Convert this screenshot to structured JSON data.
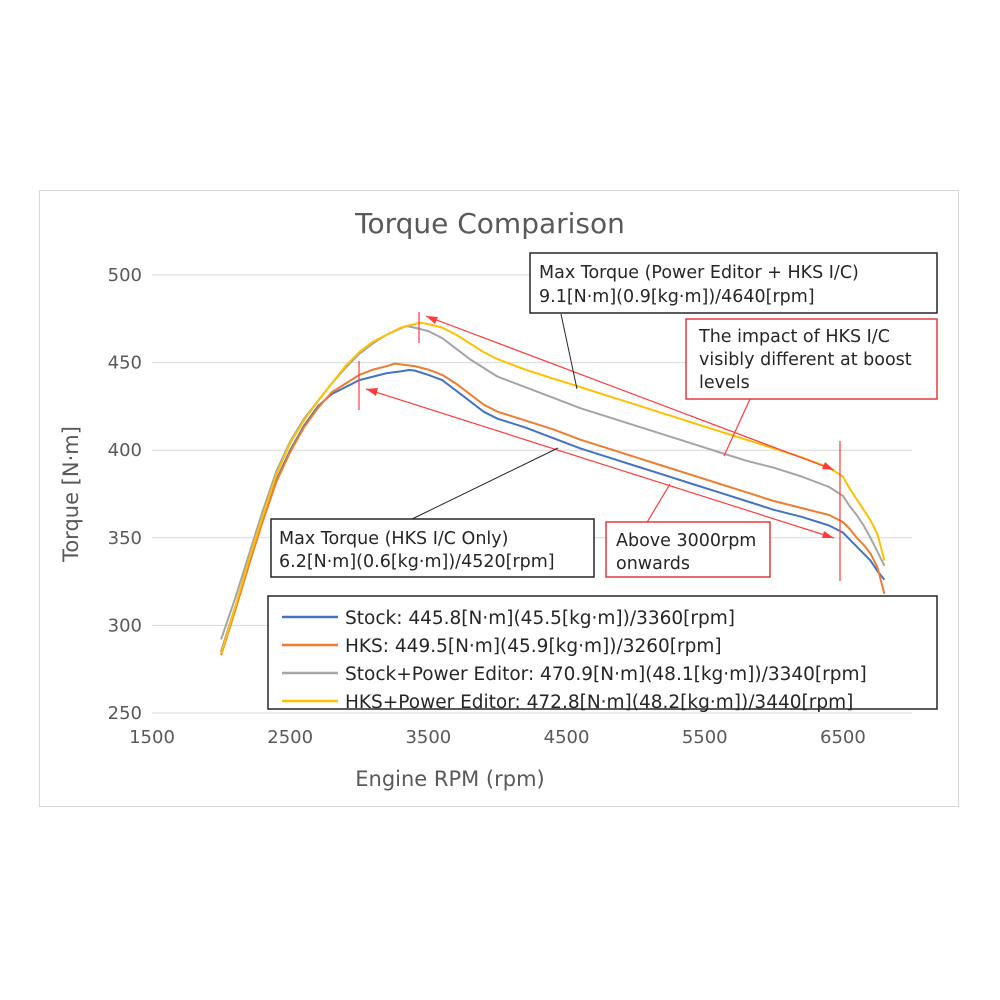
{
  "chart_data": {
    "type": "line",
    "title": "Torque Comparison",
    "xlabel": "Engine RPM (rpm)",
    "ylabel": "Torque [N·m]",
    "xlim": [
      1500,
      7000
    ],
    "ylim": [
      250,
      500
    ],
    "xticks": [
      "1500",
      "2500",
      "3500",
      "4500",
      "5500",
      "6500"
    ],
    "yticks": [
      "250",
      "300",
      "350",
      "400",
      "450",
      "500"
    ],
    "grid": "horizontal",
    "legend_position": "bottom-right",
    "series": [
      {
        "name": "Stock: 445.8[N·m](45.5[kg·m])/3360[rpm]",
        "color": "#4472c4",
        "x": [
          2000,
          2100,
          2200,
          2300,
          2400,
          2500,
          2600,
          2700,
          2800,
          2900,
          3000,
          3100,
          3200,
          3300,
          3360,
          3400,
          3500,
          3600,
          3700,
          3800,
          3900,
          4000,
          4200,
          4400,
          4600,
          4800,
          5000,
          5200,
          5400,
          5600,
          5800,
          6000,
          6200,
          6400,
          6500,
          6550,
          6600,
          6650,
          6700,
          6750,
          6800
        ],
        "y": [
          285,
          310,
          335,
          360,
          383,
          400,
          414,
          425,
          432,
          436,
          440,
          442,
          444,
          445,
          445.8,
          445.5,
          443,
          440,
          434,
          428,
          422,
          418,
          413,
          407,
          401,
          396,
          391,
          386,
          381,
          376,
          371,
          366,
          362,
          357,
          353,
          349,
          345,
          341,
          337,
          331,
          326
        ]
      },
      {
        "name": "HKS: 449.5[N·m](45.9[kg·m])/3260[rpm]",
        "color": "#ed7d31",
        "x": [
          2000,
          2100,
          2200,
          2300,
          2400,
          2500,
          2600,
          2700,
          2800,
          2900,
          3000,
          3100,
          3200,
          3260,
          3300,
          3400,
          3500,
          3600,
          3700,
          3800,
          3900,
          4000,
          4200,
          4400,
          4600,
          4800,
          5000,
          5200,
          5400,
          5600,
          5800,
          6000,
          6200,
          6400,
          6500,
          6550,
          6600,
          6650,
          6700,
          6750,
          6800
        ],
        "y": [
          283,
          308,
          334,
          359,
          382,
          399,
          413,
          424,
          433,
          438,
          443,
          446,
          448,
          449.5,
          449,
          448,
          446,
          443,
          438,
          432,
          426,
          422,
          417,
          412,
          406,
          401,
          396,
          391,
          386,
          381,
          376,
          371,
          367,
          363,
          359,
          355,
          350,
          346,
          341,
          333,
          318
        ]
      },
      {
        "name": "Stock+Power Editor: 470.9[N·m](48.1[kg·m])/3340[rpm]",
        "color": "#a5a5a5",
        "x": [
          2000,
          2100,
          2200,
          2300,
          2400,
          2500,
          2600,
          2700,
          2800,
          2900,
          3000,
          3100,
          3200,
          3340,
          3400,
          3500,
          3600,
          3700,
          3800,
          3900,
          4000,
          4200,
          4400,
          4600,
          4800,
          5000,
          5200,
          5400,
          5600,
          5800,
          6000,
          6200,
          6400,
          6500,
          6550,
          6600,
          6650,
          6700,
          6750,
          6800
        ],
        "y": [
          292,
          315,
          340,
          365,
          388,
          405,
          418,
          428,
          438,
          447,
          455,
          461,
          466,
          470.9,
          470,
          468,
          464,
          458,
          452,
          447,
          442,
          436,
          430,
          424,
          419,
          414,
          409,
          404,
          399,
          394,
          390,
          385,
          379,
          374,
          368,
          363,
          357,
          350,
          342,
          334
        ]
      },
      {
        "name": "HKS+Power Editor: 472.8[N·m](48.2[kg·m])/3440[rpm]",
        "color": "#ffc000",
        "x": [
          2000,
          2100,
          2200,
          2300,
          2400,
          2500,
          2600,
          2700,
          2800,
          2900,
          3000,
          3100,
          3200,
          3300,
          3440,
          3500,
          3600,
          3700,
          3800,
          3900,
          4000,
          4200,
          4400,
          4600,
          4800,
          5000,
          5200,
          5400,
          5600,
          5800,
          6000,
          6200,
          6400,
          6500,
          6550,
          6600,
          6650,
          6700,
          6750,
          6800
        ],
        "y": [
          284,
          310,
          337,
          362,
          386,
          404,
          417,
          428,
          438,
          448,
          456,
          462,
          466,
          470,
          472.8,
          472,
          470,
          466,
          461,
          456,
          452,
          446,
          441,
          436,
          431,
          426,
          421,
          416,
          411,
          406,
          401,
          396,
          390,
          385,
          378,
          372,
          366,
          360,
          352,
          337
        ]
      }
    ],
    "annotations": [
      {
        "lines": [
          "Max Torque (Power Editor + HKS I/C)",
          "9.1[N·m](0.9[kg·m])/4640[rpm]"
        ]
      },
      {
        "lines": [
          "The impact of HKS I/C",
          "visibly different at boost",
          "levels"
        ]
      },
      {
        "lines": [
          "Max Torque (HKS I/C Only)",
          "6.2[N·m](0.6[kg·m])/4520[rpm]"
        ]
      },
      {
        "lines": [
          "Above 3000rpm",
          "onwards"
        ]
      }
    ]
  }
}
